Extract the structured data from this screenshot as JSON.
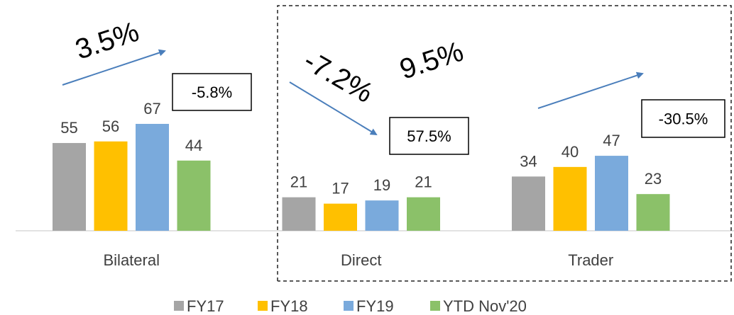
{
  "chart_data": {
    "type": "bar",
    "categories": [
      "Bilateral",
      "Direct",
      "Trader"
    ],
    "series": [
      {
        "name": "FY17",
        "color": "#a5a5a5",
        "values": [
          55,
          21,
          34
        ]
      },
      {
        "name": "FY18",
        "color": "#ffc000",
        "values": [
          56,
          17,
          40
        ]
      },
      {
        "name": "FY19",
        "color": "#7aaadc",
        "values": [
          67,
          19,
          47
        ]
      },
      {
        "name": "YTD Nov'20",
        "color": "#8bc169",
        "values": [
          44,
          21,
          23
        ]
      }
    ],
    "annotations": [
      {
        "growth": "3.5%",
        "change": "-5.8%"
      },
      {
        "growth": "-7.2%",
        "change": "57.5%"
      },
      {
        "growth": "9.5%",
        "change": "-30.5%"
      }
    ]
  }
}
